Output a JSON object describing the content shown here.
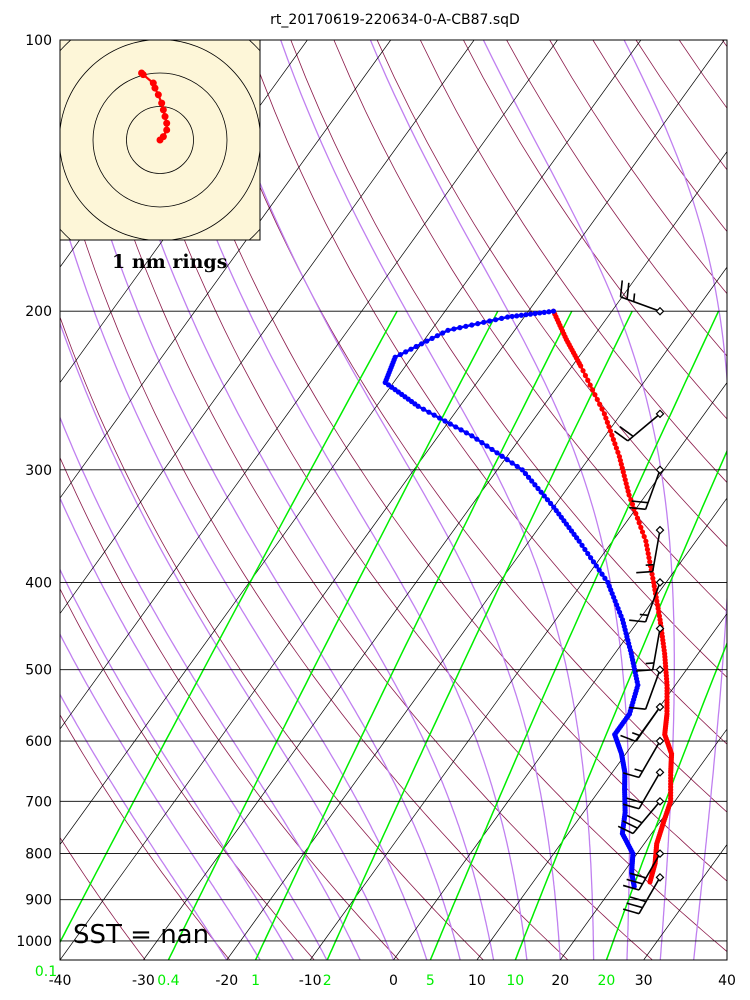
{
  "title": "rt_20170619-220634-0-A-CB87.sqD",
  "sst_label": "SST =  nan",
  "hodograph_label": "1 nm rings",
  "colors": {
    "temperature": "#ff0000",
    "dewpoint": "#0000ff",
    "dry_adiabat": "#8b1a4a",
    "moist_adiabat": "#c080f0",
    "mixing_ratio": "#00ee00",
    "isotherm": "#000000",
    "hodograph_bg": "#fdf6d8"
  },
  "chart_data": {
    "type": "skew-t",
    "x_range": [
      -40,
      40
    ],
    "p_range": [
      1050,
      100
    ],
    "xticks": [
      "-40",
      "-30",
      "-20",
      "-10",
      "0",
      "10",
      "20",
      "30",
      "40"
    ],
    "yticks": [
      "100",
      "200",
      "300",
      "400",
      "500",
      "600",
      "700",
      "800",
      "900",
      "1000"
    ],
    "mixing_ratio_labels": [
      "0.1",
      "0.4",
      "1",
      "2",
      "5",
      "10",
      "20"
    ],
    "temperature": [
      {
        "p": 860,
        "t": 24.0
      },
      {
        "p": 820,
        "t": 23.0
      },
      {
        "p": 780,
        "t": 21.5
      },
      {
        "p": 740,
        "t": 20.5
      },
      {
        "p": 700,
        "t": 19.5
      },
      {
        "p": 650,
        "t": 17.0
      },
      {
        "p": 620,
        "t": 15.5
      },
      {
        "p": 590,
        "t": 13.0
      },
      {
        "p": 560,
        "t": 11.5
      },
      {
        "p": 520,
        "t": 9.0
      },
      {
        "p": 480,
        "t": 6.0
      },
      {
        "p": 440,
        "t": 2.5
      },
      {
        "p": 400,
        "t": -1.5
      },
      {
        "p": 360,
        "t": -6.0
      },
      {
        "p": 320,
        "t": -12.0
      },
      {
        "p": 290,
        "t": -16.5
      },
      {
        "p": 260,
        "t": -22.0
      },
      {
        "p": 230,
        "t": -29.0
      },
      {
        "p": 215,
        "t": -33.0
      },
      {
        "p": 200,
        "t": -37.0
      }
    ],
    "dewpoint": [
      {
        "p": 870,
        "t": 22.5
      },
      {
        "p": 840,
        "t": 21.0
      },
      {
        "p": 800,
        "t": 19.5
      },
      {
        "p": 760,
        "t": 16.5
      },
      {
        "p": 720,
        "t": 15.0
      },
      {
        "p": 680,
        "t": 13.0
      },
      {
        "p": 650,
        "t": 11.5
      },
      {
        "p": 620,
        "t": 9.5
      },
      {
        "p": 590,
        "t": 7.0
      },
      {
        "p": 560,
        "t": 7.0
      },
      {
        "p": 520,
        "t": 5.5
      },
      {
        "p": 480,
        "t": 2.0
      },
      {
        "p": 440,
        "t": -2.0
      },
      {
        "p": 400,
        "t": -7.0
      },
      {
        "p": 360,
        "t": -14.0
      },
      {
        "p": 330,
        "t": -20.0
      },
      {
        "p": 300,
        "t": -27.0
      },
      {
        "p": 275,
        "t": -36.0
      },
      {
        "p": 255,
        "t": -45.0
      },
      {
        "p": 240,
        "t": -51.0
      },
      {
        "p": 225,
        "t": -52.0
      },
      {
        "p": 210,
        "t": -48.0
      },
      {
        "p": 203,
        "t": -42.0
      },
      {
        "p": 200,
        "t": -37.0
      }
    ],
    "hodograph": [
      {
        "u": 0.0,
        "v": 0.0
      },
      {
        "u": 0.1,
        "v": 0.1
      },
      {
        "u": 0.2,
        "v": 0.3
      },
      {
        "u": 0.2,
        "v": 0.5
      },
      {
        "u": 0.15,
        "v": 0.7
      },
      {
        "u": 0.1,
        "v": 0.9
      },
      {
        "u": 0.05,
        "v": 1.1
      },
      {
        "u": -0.05,
        "v": 1.35
      },
      {
        "u": -0.15,
        "v": 1.55
      },
      {
        "u": -0.2,
        "v": 1.7
      },
      {
        "u": -0.5,
        "v": 1.95
      },
      {
        "u": -0.55,
        "v": 2.0
      }
    ],
    "wind_barbs": [
      {
        "p": 200,
        "dir": 290,
        "spd": 25
      },
      {
        "p": 260,
        "dir": 230,
        "spd": 20
      },
      {
        "p": 300,
        "dir": 200,
        "spd": 20
      },
      {
        "p": 350,
        "dir": 190,
        "spd": 15
      },
      {
        "p": 400,
        "dir": 200,
        "spd": 15
      },
      {
        "p": 450,
        "dir": 190,
        "spd": 15
      },
      {
        "p": 500,
        "dir": 200,
        "spd": 10
      },
      {
        "p": 550,
        "dir": 215,
        "spd": 15
      },
      {
        "p": 600,
        "dir": 210,
        "spd": 15
      },
      {
        "p": 650,
        "dir": 210,
        "spd": 20
      },
      {
        "p": 700,
        "dir": 220,
        "spd": 30
      },
      {
        "p": 800,
        "dir": 210,
        "spd": 30
      },
      {
        "p": 850,
        "dir": 210,
        "spd": 30
      }
    ]
  }
}
